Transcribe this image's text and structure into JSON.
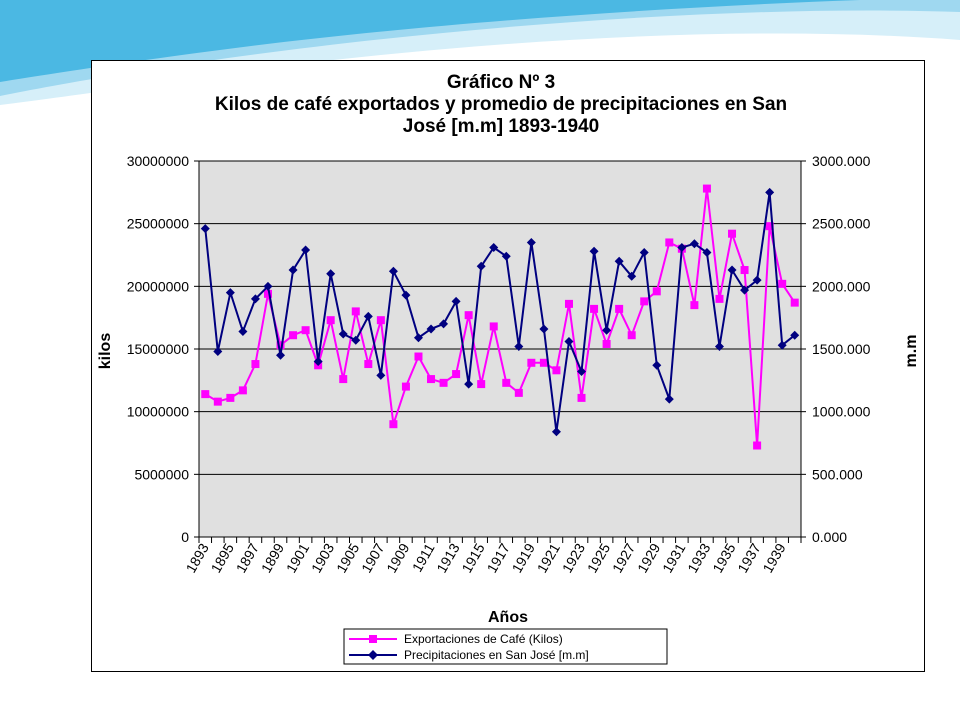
{
  "colors": {
    "plot_bg": "#e0e0e0",
    "exports_series": "#ff00ff",
    "precip_series": "#000080",
    "slide_wave_light": "#bfe6f5",
    "slide_wave_dark": "#2aa6d6"
  },
  "chart_data": {
    "type": "line",
    "title_lines": [
      "Gráfico Nº 3",
      "Kilos de café exportados y promedio de precipitaciones en San",
      "José [m.m] 1893-1940"
    ],
    "xlabel": "Años",
    "ylabel_left": "kilos",
    "ylabel_right": "m.m",
    "ylim_left": [
      0,
      30000000
    ],
    "ylim_right": [
      0,
      3000
    ],
    "yticks_left": [
      "0",
      "5000000",
      "10000000",
      "15000000",
      "20000000",
      "25000000",
      "30000000"
    ],
    "yticks_right": [
      "0.000",
      "500.000",
      "1000.000",
      "1500.000",
      "2000.000",
      "2500.000",
      "3000.000"
    ],
    "x_tick_labels": [
      "1893",
      "1895",
      "1897",
      "1899",
      "1901",
      "1903",
      "1905",
      "1907",
      "1909",
      "1911",
      "1913",
      "1915",
      "1917",
      "1919",
      "1921",
      "1923",
      "1925",
      "1927",
      "1929",
      "1931",
      "1933",
      "1935",
      "1937",
      "1939"
    ],
    "years": [
      1893,
      1894,
      1895,
      1896,
      1897,
      1898,
      1899,
      1900,
      1901,
      1902,
      1903,
      1904,
      1905,
      1906,
      1907,
      1908,
      1909,
      1910,
      1911,
      1912,
      1913,
      1914,
      1915,
      1916,
      1917,
      1918,
      1919,
      1920,
      1921,
      1922,
      1923,
      1924,
      1925,
      1926,
      1927,
      1928,
      1929,
      1930,
      1931,
      1932,
      1933,
      1934,
      1935,
      1936,
      1937,
      1938,
      1939,
      1940
    ],
    "grid": "horizontal",
    "legend_position": "bottom",
    "series": [
      {
        "name": "Exportaciones de Café (Kilos)",
        "axis": "left",
        "marker": "square",
        "values": [
          11400000,
          10800000,
          11100000,
          11700000,
          13800000,
          19400000,
          15300000,
          16100000,
          16500000,
          13700000,
          17300000,
          12600000,
          18000000,
          13800000,
          17300000,
          9000000,
          12000000,
          14400000,
          12600000,
          12300000,
          13000000,
          17700000,
          12200000,
          16800000,
          12300000,
          11500000,
          13900000,
          13900000,
          13300000,
          18600000,
          11100000,
          18200000,
          15400000,
          18200000,
          16100000,
          18800000,
          19600000,
          23500000,
          23000000,
          18500000,
          27800000,
          19000000,
          24200000,
          21300000,
          7300000,
          24800000,
          20200000,
          18700000
        ]
      },
      {
        "name": "Precipitaciones en San José [m.m]",
        "axis": "right",
        "marker": "diamond",
        "values": [
          2460,
          1480,
          1950,
          1640,
          1900,
          2000,
          1450,
          2130,
          2290,
          1400,
          2100,
          1620,
          1570,
          1760,
          1290,
          2120,
          1930,
          1590,
          1660,
          1700,
          1880,
          1220,
          2160,
          2310,
          2240,
          1520,
          2350,
          1660,
          840,
          1560,
          1320,
          2280,
          1650,
          2200,
          2080,
          2270,
          1370,
          1100,
          2310,
          2340,
          2270,
          1520,
          2130,
          1970,
          2050,
          2750,
          1530,
          1610
        ]
      }
    ]
  }
}
